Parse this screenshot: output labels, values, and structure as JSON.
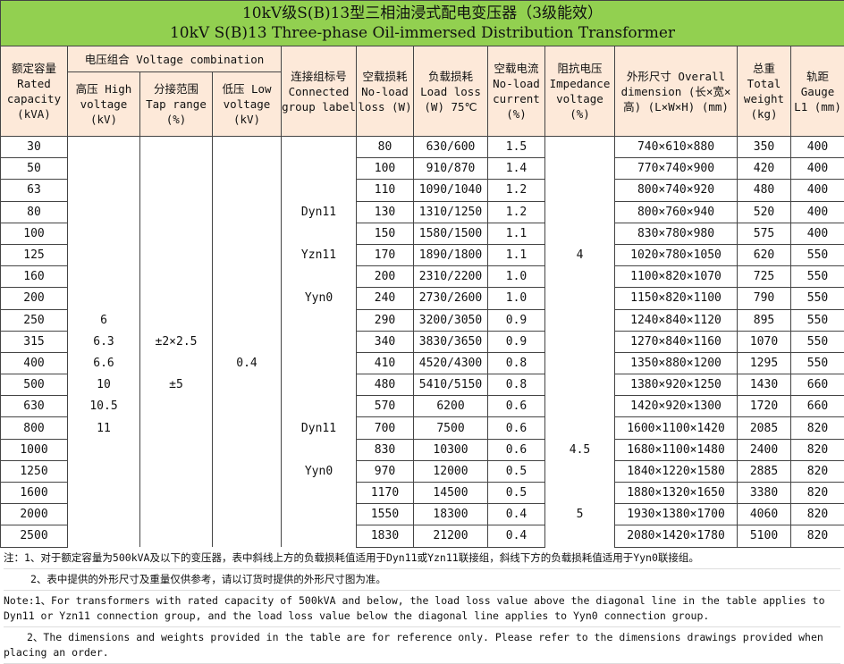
{
  "title": {
    "cn": "10kV级S(B)13型三相油浸式配电变压器（3级能效）",
    "en": "10kV S(B)13 Three-phase Oil-immersed Distribution Transformer"
  },
  "headers": {
    "capacity": "额定容量 Rated capacity (kVA)",
    "voltage_combo": "电压组合 Voltage combination",
    "high_voltage": "高压 High voltage (kV)",
    "tap_range": "分接范围 Tap range (%)",
    "low_voltage": "低压 Low voltage (kV)",
    "group": "连接组标号 Connected group label",
    "noload_loss": "空载损耗 No-load loss (W)",
    "load_loss": "负载损耗 Load loss (W) 75℃",
    "noload_current": "空载电流 No-load current (%)",
    "impedance": "阻抗电压 Impedance voltage (%)",
    "dimension": "外形尺寸 Overall dimension (长×宽×高) (L×W×H) (mm)",
    "weight": "总重 Total weight (kg)",
    "gauge": "轨距 Gauge L1 (mm)"
  },
  "rows": [
    [
      "30",
      "",
      "",
      "",
      "",
      "80",
      "630/600",
      "1.5",
      "",
      "740×610×880",
      "350",
      "400"
    ],
    [
      "50",
      "",
      "",
      "",
      "",
      "100",
      "910/870",
      "1.4",
      "",
      "770×740×900",
      "420",
      "400"
    ],
    [
      "63",
      "",
      "",
      "",
      "",
      "110",
      "1090/1040",
      "1.2",
      "",
      "800×740×920",
      "480",
      "400"
    ],
    [
      "80",
      "",
      "",
      "",
      "Dyn11",
      "130",
      "1310/1250",
      "1.2",
      "",
      "800×760×940",
      "520",
      "400"
    ],
    [
      "100",
      "",
      "",
      "",
      "",
      "150",
      "1580/1500",
      "1.1",
      "",
      "830×780×980",
      "575",
      "400"
    ],
    [
      "125",
      "",
      "",
      "",
      "Yzn11",
      "170",
      "1890/1800",
      "1.1",
      "4",
      "1020×780×1050",
      "620",
      "550"
    ],
    [
      "160",
      "",
      "",
      "",
      "",
      "200",
      "2310/2200",
      "1.0",
      "",
      "1100×820×1070",
      "725",
      "550"
    ],
    [
      "200",
      "",
      "",
      "",
      "Yyn0",
      "240",
      "2730/2600",
      "1.0",
      "",
      "1150×820×1100",
      "790",
      "550"
    ],
    [
      "250",
      "6",
      "",
      "",
      "",
      "290",
      "3200/3050",
      "0.9",
      "",
      "1240×840×1120",
      "895",
      "550"
    ],
    [
      "315",
      "6.3",
      "±2×2.5",
      "",
      "",
      "340",
      "3830/3650",
      "0.9",
      "",
      "1270×840×1160",
      "1070",
      "550"
    ],
    [
      "400",
      "6.6",
      "",
      "0.4",
      "",
      "410",
      "4520/4300",
      "0.8",
      "",
      "1350×880×1200",
      "1295",
      "550"
    ],
    [
      "500",
      "10",
      "±5",
      "",
      "",
      "480",
      "5410/5150",
      "0.8",
      "",
      "1380×920×1250",
      "1430",
      "660"
    ],
    [
      "630",
      "10.5",
      "",
      "",
      "",
      "570",
      "6200",
      "0.6",
      "",
      "1420×920×1300",
      "1720",
      "660"
    ],
    [
      "800",
      "11",
      "",
      "",
      "Dyn11",
      "700",
      "7500",
      "0.6",
      "",
      "1600×1100×1420",
      "2085",
      "820"
    ],
    [
      "1000",
      "",
      "",
      "",
      "",
      "830",
      "10300",
      "0.6",
      "4.5",
      "1680×1100×1480",
      "2400",
      "820"
    ],
    [
      "1250",
      "",
      "",
      "",
      "Yyn0",
      "970",
      "12000",
      "0.5",
      "",
      "1840×1220×1580",
      "2885",
      "820"
    ],
    [
      "1600",
      "",
      "",
      "",
      "",
      "1170",
      "14500",
      "0.5",
      "",
      "1880×1320×1650",
      "3380",
      "820"
    ],
    [
      "2000",
      "",
      "",
      "",
      "",
      "1550",
      "18300",
      "0.4",
      "5",
      "1930×1380×1700",
      "4060",
      "820"
    ],
    [
      "2500",
      "",
      "",
      "",
      "",
      "1830",
      "21200",
      "0.4",
      "",
      "2080×1420×1780",
      "5100",
      "820"
    ]
  ],
  "notes": {
    "cn1": "注：1、对于额定容量为500kVA及以下的变压器，表中斜线上方的负载损耗值适用于Dyn11或Yzn11联接组，斜线下方的负载损耗值适用于Yyn0联接组。",
    "cn2": "2、表中提供的外形尺寸及重量仅供参考，请以订货时提供的外形尺寸图为准。",
    "en1": "Note:1、For transformers with rated capacity of 500kVA and below, the load loss value above the diagonal line in the table applies to Dyn11 or Yzn11 connection group, and the load loss value below the diagonal line applies to Yyn0 connection group.",
    "en2": "2、The dimensions and weights provided in the table are for reference only. Please refer to the dimensions drawings provided when placing an order."
  }
}
